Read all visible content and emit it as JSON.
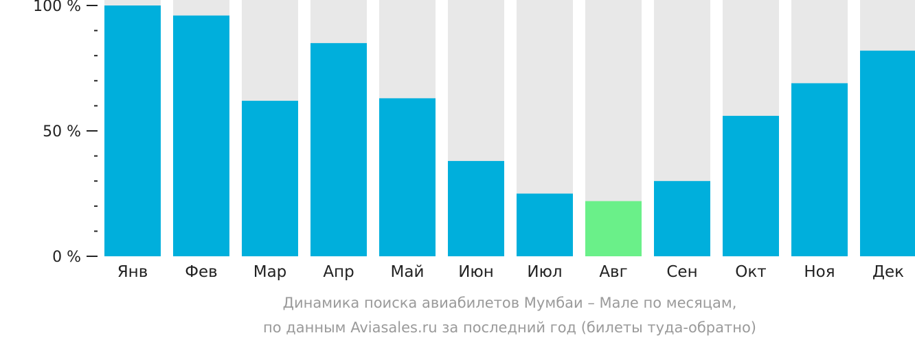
{
  "colors": {
    "bar": "#00afdc",
    "bar_highlight": "#6af089",
    "bar_background": "#e8e8e8",
    "axis": "#222222",
    "caption": "#9a9a9a"
  },
  "caption": {
    "line1": "Динамика поиска авиабилетов Мумбаи – Мале по месяцам,",
    "line2": "по данным Aviasales.ru за последний год (билеты туда-обратно)"
  },
  "chart_data": {
    "type": "bar",
    "categories": [
      "Янв",
      "Фев",
      "Мар",
      "Апр",
      "Май",
      "Июн",
      "Июл",
      "Авг",
      "Сен",
      "Окт",
      "Ноя",
      "Дек"
    ],
    "values": [
      100,
      96,
      62,
      85,
      63,
      38,
      25,
      22,
      30,
      56,
      69,
      82
    ],
    "highlight_index": 7,
    "ylim": [
      0,
      100
    ],
    "yticks": [
      {
        "value": 0,
        "label": "0 %"
      },
      {
        "value": 50,
        "label": "50 %"
      },
      {
        "value": 100,
        "label": "100 %"
      }
    ],
    "minor_tick_step": 10,
    "title": "",
    "xlabel": "",
    "ylabel": "",
    "grid": false,
    "legend": "none"
  }
}
